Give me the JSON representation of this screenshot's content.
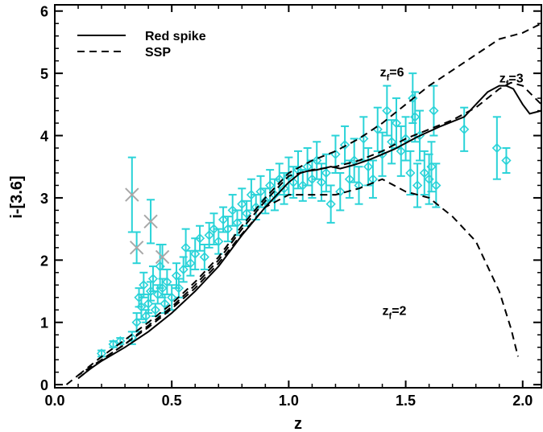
{
  "chart_data": {
    "type": "line",
    "xlabel": "z",
    "ylabel": "i-[3.6]",
    "xlim": [
      0.0,
      2.08
    ],
    "ylim": [
      -0.05,
      6.1
    ],
    "x_ticks": [
      {
        "value": 0.0,
        "label": "0.0"
      },
      {
        "value": 0.5,
        "label": "0.5"
      },
      {
        "value": 1.0,
        "label": "1.0"
      },
      {
        "value": 1.5,
        "label": "1.5"
      },
      {
        "value": 2.0,
        "label": "2.0"
      }
    ],
    "y_ticks": [
      {
        "value": 0,
        "label": "0"
      },
      {
        "value": 1,
        "label": "1"
      },
      {
        "value": 2,
        "label": "2"
      },
      {
        "value": 3,
        "label": "3"
      },
      {
        "value": 4,
        "label": "4"
      },
      {
        "value": 5,
        "label": "5"
      },
      {
        "value": 6,
        "label": "6"
      }
    ],
    "grid": false,
    "legend": {
      "position": "top-left",
      "entries": [
        {
          "label": "Red spike",
          "style": "solid",
          "color": "#000000"
        },
        {
          "label": "SSP",
          "style": "dashed",
          "color": "#000000"
        }
      ]
    },
    "series": [
      {
        "name": "Red spike",
        "style": "solid",
        "color": "#000000",
        "x": [
          0.1,
          0.15,
          0.2,
          0.3,
          0.4,
          0.5,
          0.6,
          0.7,
          0.8,
          0.9,
          1.0,
          1.05,
          1.08,
          1.12,
          1.18,
          1.22,
          1.28,
          1.35,
          1.45,
          1.55,
          1.65,
          1.75,
          1.8,
          1.85,
          1.9,
          1.93,
          1.96,
          2.0,
          2.03,
          2.08
        ],
        "y": [
          0.1,
          0.25,
          0.38,
          0.6,
          0.85,
          1.15,
          1.5,
          1.9,
          2.4,
          2.85,
          3.25,
          3.4,
          3.43,
          3.45,
          3.5,
          3.47,
          3.53,
          3.62,
          3.78,
          3.98,
          4.15,
          4.3,
          4.5,
          4.7,
          4.8,
          4.8,
          4.75,
          4.5,
          4.35,
          4.4
        ]
      },
      {
        "name": "SSP zf=6",
        "style": "dashed",
        "color": "#000000",
        "x": [
          0.1,
          0.2,
          0.3,
          0.4,
          0.5,
          0.6,
          0.7,
          0.8,
          0.9,
          1.0,
          1.1,
          1.2,
          1.3,
          1.4,
          1.5,
          1.6,
          1.7,
          1.8,
          1.9,
          2.0,
          2.08
        ],
        "y": [
          0.15,
          0.45,
          0.72,
          1.0,
          1.3,
          1.65,
          2.05,
          2.55,
          3.0,
          3.4,
          3.6,
          3.75,
          3.95,
          4.2,
          4.5,
          4.8,
          5.05,
          5.3,
          5.55,
          5.65,
          5.8
        ]
      },
      {
        "name": "SSP zf=3",
        "style": "dashed",
        "color": "#000000",
        "x": [
          0.1,
          0.2,
          0.3,
          0.4,
          0.5,
          0.6,
          0.7,
          0.8,
          0.9,
          1.0,
          1.1,
          1.2,
          1.3,
          1.4,
          1.5,
          1.6,
          1.7,
          1.8,
          1.9,
          1.95,
          2.0,
          2.08
        ],
        "y": [
          0.1,
          0.4,
          0.65,
          0.95,
          1.25,
          1.6,
          2.0,
          2.5,
          2.95,
          3.35,
          3.45,
          3.5,
          3.6,
          3.75,
          3.95,
          4.1,
          4.25,
          4.45,
          4.75,
          4.85,
          4.8,
          4.5
        ]
      },
      {
        "name": "SSP zf=2",
        "style": "dashed",
        "color": "#000000",
        "x": [
          0.05,
          0.1,
          0.2,
          0.3,
          0.4,
          0.5,
          0.6,
          0.7,
          0.8,
          0.9,
          1.0,
          1.1,
          1.2,
          1.3,
          1.4,
          1.5,
          1.6,
          1.7,
          1.8,
          1.9,
          1.95,
          1.98
        ],
        "y": [
          0.0,
          0.15,
          0.4,
          0.65,
          0.92,
          1.22,
          1.55,
          1.95,
          2.42,
          2.85,
          3.05,
          3.05,
          3.05,
          3.15,
          3.3,
          3.1,
          3.0,
          2.7,
          2.3,
          1.5,
          0.9,
          0.45
        ]
      }
    ],
    "annotations": [
      {
        "text": "z",
        "sub": "f",
        "tail": "=6",
        "x": 1.39,
        "y": 4.95
      },
      {
        "text": "z",
        "sub": "f",
        "tail": "=3",
        "x": 1.9,
        "y": 4.85
      },
      {
        "text": "z",
        "sub": "f",
        "tail": "=2",
        "x": 1.4,
        "y": 1.12
      }
    ],
    "data_points": {
      "marker": "diamond",
      "color": "#2ad3d8",
      "points": [
        [
          0.2,
          0.5,
          0.05
        ],
        [
          0.25,
          0.65,
          0.05
        ],
        [
          0.28,
          0.7,
          0.05
        ],
        [
          0.33,
          0.75,
          0.1
        ],
        [
          0.35,
          1.0,
          0.15
        ],
        [
          0.36,
          1.4,
          0.15
        ],
        [
          0.37,
          1.25,
          0.2
        ],
        [
          0.38,
          1.6,
          0.2
        ],
        [
          0.39,
          1.1,
          0.1
        ],
        [
          0.4,
          1.3,
          0.15
        ],
        [
          0.41,
          1.5,
          0.15
        ],
        [
          0.42,
          1.7,
          0.2
        ],
        [
          0.43,
          1.2,
          0.1
        ],
        [
          0.44,
          1.45,
          0.15
        ],
        [
          0.45,
          1.9,
          0.35
        ],
        [
          0.46,
          1.55,
          0.15
        ],
        [
          0.47,
          1.3,
          0.15
        ],
        [
          0.48,
          1.65,
          0.2
        ],
        [
          0.5,
          1.4,
          0.2
        ],
        [
          0.52,
          1.75,
          0.2
        ],
        [
          0.53,
          1.55,
          0.15
        ],
        [
          0.55,
          1.85,
          0.2
        ],
        [
          0.56,
          2.2,
          0.3
        ],
        [
          0.58,
          1.95,
          0.2
        ],
        [
          0.6,
          2.1,
          0.25
        ],
        [
          0.62,
          2.35,
          0.2
        ],
        [
          0.64,
          2.05,
          0.2
        ],
        [
          0.66,
          2.4,
          0.2
        ],
        [
          0.68,
          2.5,
          0.25
        ],
        [
          0.7,
          2.3,
          0.2
        ],
        [
          0.72,
          2.65,
          0.2
        ],
        [
          0.74,
          2.5,
          0.2
        ],
        [
          0.76,
          2.8,
          0.25
        ],
        [
          0.78,
          2.6,
          0.2
        ],
        [
          0.8,
          2.9,
          0.25
        ],
        [
          0.82,
          2.75,
          0.2
        ],
        [
          0.84,
          3.05,
          0.25
        ],
        [
          0.86,
          2.85,
          0.2
        ],
        [
          0.88,
          3.1,
          0.25
        ],
        [
          0.9,
          2.95,
          0.2
        ],
        [
          0.92,
          3.2,
          0.25
        ],
        [
          0.94,
          3.05,
          0.25
        ],
        [
          0.96,
          3.3,
          0.25
        ],
        [
          0.98,
          3.15,
          0.25
        ],
        [
          1.0,
          3.35,
          0.3
        ],
        [
          1.02,
          3.25,
          0.25
        ],
        [
          1.04,
          3.45,
          0.3
        ],
        [
          1.06,
          3.2,
          0.25
        ],
        [
          1.08,
          3.5,
          0.3
        ],
        [
          1.1,
          3.3,
          0.3
        ],
        [
          1.12,
          3.6,
          0.3
        ],
        [
          1.14,
          3.25,
          0.3
        ],
        [
          1.16,
          3.4,
          0.3
        ],
        [
          1.18,
          2.9,
          0.3
        ],
        [
          1.2,
          3.7,
          0.3
        ],
        [
          1.22,
          3.1,
          0.3
        ],
        [
          1.24,
          3.85,
          0.3
        ],
        [
          1.26,
          3.3,
          0.3
        ],
        [
          1.28,
          3.6,
          0.35
        ],
        [
          1.3,
          3.2,
          0.3
        ],
        [
          1.32,
          3.95,
          0.35
        ],
        [
          1.34,
          3.5,
          0.3
        ],
        [
          1.36,
          3.3,
          0.3
        ],
        [
          1.38,
          4.1,
          0.35
        ],
        [
          1.4,
          3.7,
          0.35
        ],
        [
          1.42,
          4.4,
          0.4
        ],
        [
          1.44,
          3.9,
          0.35
        ],
        [
          1.46,
          4.2,
          0.4
        ],
        [
          1.48,
          3.75,
          0.4
        ],
        [
          1.5,
          3.95,
          0.35
        ],
        [
          1.52,
          3.4,
          0.35
        ],
        [
          1.53,
          4.6,
          0.4
        ],
        [
          1.54,
          4.3,
          0.4
        ],
        [
          1.55,
          3.2,
          0.35
        ],
        [
          1.56,
          4.0,
          0.4
        ],
        [
          1.58,
          3.4,
          0.35
        ],
        [
          1.6,
          3.3,
          0.4
        ],
        [
          1.61,
          3.5,
          0.4
        ],
        [
          1.62,
          4.4,
          0.4
        ],
        [
          1.63,
          3.2,
          0.35
        ],
        [
          1.75,
          4.1,
          0.35
        ],
        [
          1.89,
          3.8,
          0.5
        ],
        [
          1.93,
          3.6,
          0.2
        ]
      ]
    },
    "rejected_points": {
      "marker": "x",
      "color": "#a8a8a8",
      "points": [
        [
          0.33,
          3.05,
          0.6
        ],
        [
          0.35,
          2.2,
          0.25
        ],
        [
          0.41,
          2.62,
          0.35
        ],
        [
          0.46,
          2.05,
          0.2
        ]
      ]
    }
  }
}
